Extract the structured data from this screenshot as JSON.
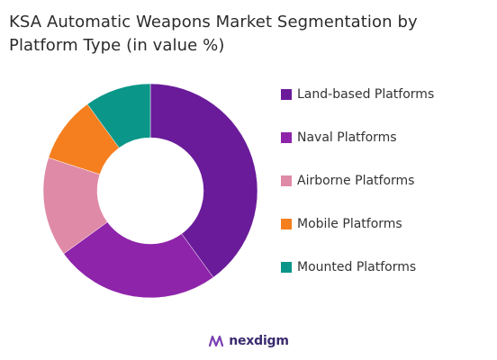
{
  "title_lines": [
    "KSA Automatic Weapons Market Segmentation by",
    "Platform Type (in value %)"
  ],
  "chart_data": {
    "type": "pie",
    "donut": true,
    "title": "KSA Automatic Weapons Market Segmentation by Platform Type (in value %)",
    "categories": [
      "Land-based Platforms",
      "Naval Platforms",
      "Airborne Platforms",
      "Mobile Platforms",
      "Mounted Platforms"
    ],
    "values": [
      40,
      25,
      15,
      10,
      10
    ],
    "colors": [
      "#6a1b9a",
      "#8e24aa",
      "#df8aa6",
      "#f57f1f",
      "#0a9688"
    ],
    "legend_position": "right"
  },
  "brand": {
    "name": "nexdigm",
    "logo_label": "nexdigm",
    "logo_color": "#3a2a6e"
  }
}
